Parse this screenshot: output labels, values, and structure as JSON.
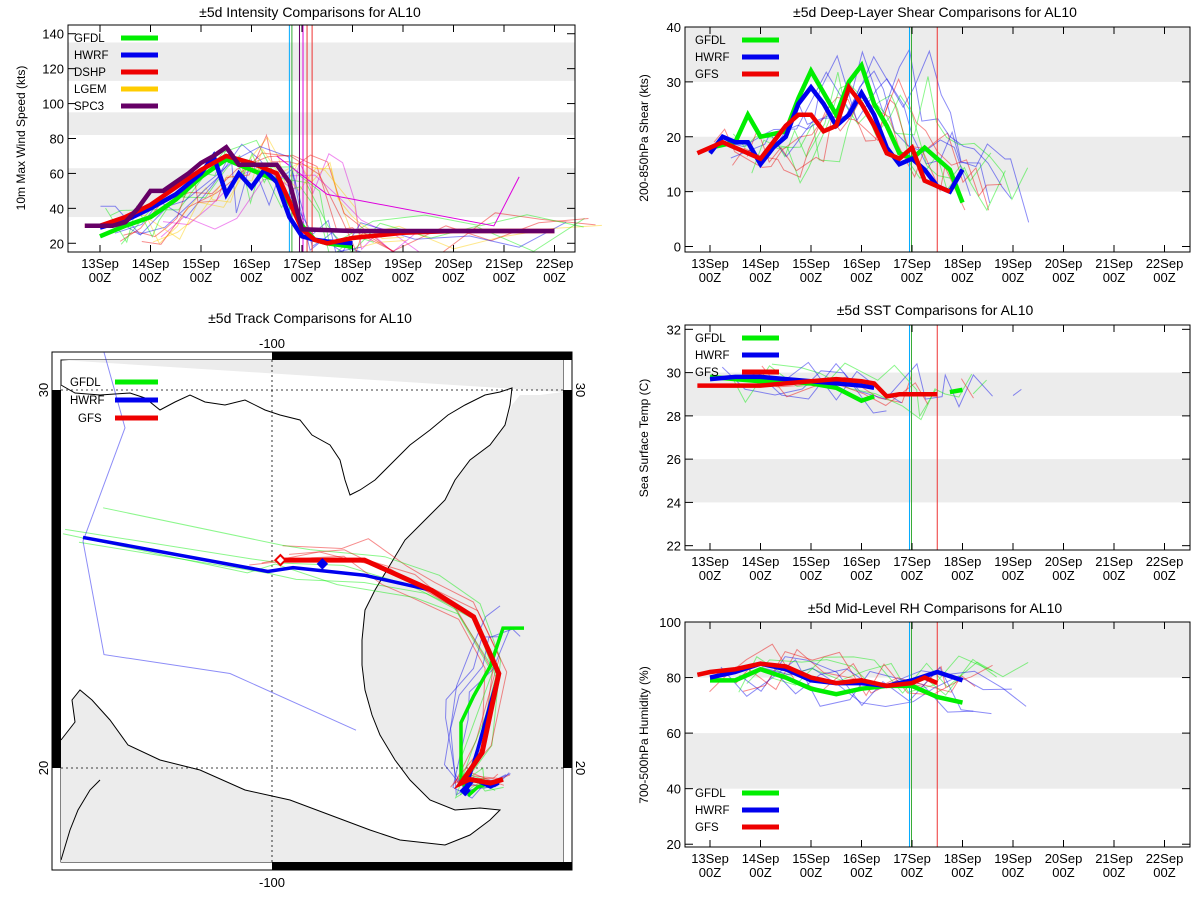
{
  "colors": {
    "GFDL": "#00ee00",
    "HWRF": "#0000ee",
    "DSHP": "#ee0000",
    "GFS": "#ee0000",
    "LGEM": "#ffcc00",
    "SPC3": "#660066",
    "band": "#ececec",
    "thin_magenta": "#dd00dd",
    "verify_cyan": "#00aaff",
    "verify_green": "#33aa33",
    "verify_red": "#ee3333"
  },
  "time_axis": {
    "labels": [
      [
        "13Sep",
        "00Z"
      ],
      [
        "14Sep",
        "00Z"
      ],
      [
        "15Sep",
        "00Z"
      ],
      [
        "16Sep",
        "00Z"
      ],
      [
        "17Sep",
        "00Z"
      ],
      [
        "18Sep",
        "00Z"
      ],
      [
        "19Sep",
        "00Z"
      ],
      [
        "20Sep",
        "00Z"
      ],
      [
        "21Sep",
        "00Z"
      ],
      [
        "22Sep",
        "00Z"
      ]
    ],
    "xmin_day": 0,
    "xmax_day": 9
  },
  "chart_data": [
    {
      "id": "intensity",
      "type": "line",
      "title": "±5d Intensity Comparisons for AL10",
      "ylabel": "10m Max Wind Speed (kts)",
      "ylim": [
        15,
        145
      ],
      "yticks": [
        20,
        40,
        60,
        80,
        100,
        120,
        140
      ],
      "bands": [
        [
          35,
          63
        ],
        [
          82,
          95
        ],
        [
          113,
          135
        ]
      ],
      "verify_lines": [
        3.75,
        3.8,
        3.95,
        4.02,
        4.1,
        4.2
      ],
      "legend": [
        "GFDL",
        "HWRF",
        "DSHP",
        "LGEM",
        "SPC3"
      ],
      "series": [
        {
          "name": "GFDL",
          "x": [
            0,
            0.5,
            1,
            1.5,
            2,
            2.5,
            3,
            3.5,
            4,
            4.25,
            4.5,
            5
          ],
          "y": [
            24,
            30,
            35,
            45,
            58,
            68,
            62,
            56,
            30,
            22,
            20,
            18
          ]
        },
        {
          "name": "HWRF",
          "x": [
            0,
            0.5,
            1,
            1.5,
            2,
            2.25,
            2.5,
            2.75,
            3,
            3.25,
            3.5,
            3.75,
            4,
            4.25,
            4.5,
            5
          ],
          "y": [
            29,
            33,
            40,
            48,
            60,
            70,
            48,
            60,
            52,
            62,
            55,
            35,
            24,
            22,
            21,
            20
          ]
        },
        {
          "name": "DSHP",
          "x": [
            -0.3,
            0,
            0.5,
            1,
            1.5,
            2,
            2.5,
            3,
            3.5,
            4,
            4.25,
            4.5,
            5,
            6,
            7,
            8,
            9
          ],
          "y": [
            30,
            30,
            35,
            42,
            52,
            62,
            70,
            66,
            60,
            28,
            22,
            20,
            23,
            26,
            27,
            27,
            27
          ]
        },
        {
          "name": "SPC3",
          "x": [
            -0.3,
            0,
            0.25,
            0.5,
            0.75,
            1,
            1.25,
            1.5,
            1.75,
            2,
            2.25,
            2.5,
            2.75,
            3,
            3.25,
            3.5,
            3.75,
            4,
            5,
            6,
            7,
            8,
            9
          ],
          "y": [
            30,
            30,
            30,
            32,
            40,
            50,
            50,
            55,
            60,
            66,
            70,
            75,
            65,
            65,
            65,
            65,
            55,
            28,
            27,
            27,
            27,
            27,
            27
          ]
        }
      ]
    },
    {
      "id": "shear",
      "type": "line",
      "title": "±5d Deep-Layer Shear Comparisons for AL10",
      "ylabel": "200-850hPa Shear (kts)",
      "ylim": [
        -1,
        40
      ],
      "yticks": [
        0,
        10,
        20,
        30,
        40
      ],
      "bands": [
        [
          10,
          20
        ],
        [
          30,
          40
        ]
      ],
      "verify_lines": [
        3.95,
        4.5
      ],
      "legend": [
        "GFDL",
        "HWRF",
        "GFS"
      ],
      "series": [
        {
          "name": "GFDL",
          "x": [
            0,
            0.5,
            0.75,
            1,
            1.5,
            1.75,
            2,
            2.5,
            2.75,
            3,
            3.25,
            3.5,
            3.75,
            4,
            4.25,
            4.5,
            4.75,
            5
          ],
          "y": [
            18,
            19,
            24,
            20,
            21,
            27,
            32,
            24,
            30,
            33,
            26,
            22,
            17,
            16,
            18,
            16,
            14,
            8
          ]
        },
        {
          "name": "HWRF",
          "x": [
            0,
            0.25,
            0.5,
            0.75,
            1,
            1.25,
            1.5,
            1.75,
            2,
            2.25,
            2.5,
            2.75,
            3,
            3.25,
            3.5,
            3.75,
            4,
            4.25,
            4.5,
            4.75,
            5
          ],
          "y": [
            17,
            20,
            19,
            19,
            15,
            18,
            20,
            26,
            29,
            26,
            22,
            24,
            28,
            24,
            18,
            15,
            16,
            14,
            11,
            10,
            14
          ]
        },
        {
          "name": "GFS",
          "x": [
            -0.25,
            0,
            0.25,
            0.5,
            0.75,
            1,
            1.25,
            1.5,
            1.75,
            2,
            2.25,
            2.5,
            2.75,
            3,
            3.25,
            3.5,
            3.75,
            4,
            4.25,
            4.5,
            4.75
          ],
          "y": [
            17,
            18,
            19,
            18,
            17,
            16,
            19,
            22,
            24,
            24,
            21,
            22,
            29,
            26,
            22,
            17,
            16,
            18,
            12,
            11,
            10
          ]
        }
      ]
    },
    {
      "id": "sst",
      "type": "line",
      "title": "±5d SST Comparisons for AL10",
      "ylabel": "Sea Surface Temp (C)",
      "ylim": [
        21.8,
        32.2
      ],
      "yticks": [
        22,
        24,
        26,
        28,
        30,
        32
      ],
      "bands": [
        [
          28,
          30
        ],
        [
          24,
          26
        ]
      ],
      "verify_lines": [
        3.95,
        4.5
      ],
      "legend": [
        "GFDL",
        "HWRF",
        "GFS"
      ],
      "series": [
        {
          "name": "GFDL",
          "x": [
            0,
            0.5,
            1,
            1.5,
            2,
            2.5,
            3,
            3.25
          ],
          "y": [
            29.8,
            29.7,
            29.6,
            29.6,
            29.5,
            29.3,
            28.7,
            28.9
          ]
        },
        {
          "name": "GFDL",
          "x": [
            4.75,
            5
          ],
          "y": [
            29.1,
            29.2
          ]
        },
        {
          "name": "HWRF",
          "x": [
            0,
            0.5,
            1,
            1.5,
            2,
            2.5,
            3,
            3.25
          ],
          "y": [
            29.7,
            29.8,
            29.8,
            29.7,
            29.6,
            29.5,
            29.4,
            29.3
          ]
        },
        {
          "name": "GFS",
          "x": [
            -0.25,
            0,
            0.5,
            1,
            1.5,
            2,
            2.5,
            3,
            3.25,
            3.5,
            3.75,
            4,
            4.25,
            4.5
          ],
          "y": [
            29.4,
            29.4,
            29.4,
            29.4,
            29.5,
            29.6,
            29.7,
            29.6,
            29.5,
            28.9,
            29.0,
            29.0,
            29.0,
            29.0
          ]
        }
      ]
    },
    {
      "id": "rh",
      "type": "line",
      "title": "±5d Mid-Level RH Comparisons for AL10",
      "ylabel": "700-500hPa Humidity (%)",
      "ylim": [
        19,
        100
      ],
      "yticks": [
        20,
        40,
        60,
        80,
        100
      ],
      "bands": [
        [
          40,
          60
        ],
        [
          80,
          100
        ]
      ],
      "verify_lines": [
        3.95,
        4.5
      ],
      "legend": [
        "GFDL",
        "HWRF",
        "GFS"
      ],
      "series": [
        {
          "name": "GFDL",
          "x": [
            0,
            0.5,
            1,
            1.5,
            2,
            2.5,
            3,
            3.5,
            4,
            4.5,
            5
          ],
          "y": [
            79,
            79,
            83,
            80,
            76,
            74,
            76,
            77,
            77,
            73,
            71
          ]
        },
        {
          "name": "HWRF",
          "x": [
            0,
            0.5,
            1,
            1.5,
            2,
            2.5,
            3,
            3.5,
            4,
            4.5,
            5
          ],
          "y": [
            80,
            82,
            85,
            83,
            79,
            78,
            78,
            77,
            79,
            82,
            79
          ]
        },
        {
          "name": "GFS",
          "x": [
            -0.25,
            0,
            0.5,
            1,
            1.5,
            2,
            2.5,
            3,
            3.5,
            4,
            4.25,
            4.5
          ],
          "y": [
            81,
            82,
            83,
            85,
            84,
            80,
            78,
            79,
            77,
            78,
            80,
            78
          ]
        }
      ]
    },
    {
      "id": "track",
      "type": "map",
      "title": "±5d Track Comparisons for AL10",
      "lon_labels": [
        "-100",
        "-100"
      ],
      "lat_labels": [
        "30",
        "20",
        "30",
        "20"
      ],
      "legend": [
        "GFDL",
        "HWRF",
        "GFS"
      ],
      "tracks": [
        {
          "name": "GFDL",
          "lon": [
            -94.5,
            -94.8,
            -95.1,
            -95.3,
            -95.5,
            -95.5,
            -95.2,
            -94.8,
            -94.5,
            -94.0
          ],
          "lat": [
            19.7,
            19.6,
            19.5,
            19.3,
            19.7,
            21.2,
            21.9,
            22.7,
            23.7,
            23.7
          ]
        },
        {
          "name": "HWRF",
          "lon": [
            -94.6,
            -94.8,
            -95.2,
            -95.4,
            -95.1,
            -94.6,
            -95.2,
            -96.2,
            -97.8,
            -99.5,
            -100.1,
            -104.5
          ],
          "lat": [
            19.6,
            19.5,
            19.7,
            19.4,
            20.5,
            22.5,
            24.0,
            24.7,
            25.1,
            25.3,
            25.2,
            26.1
          ]
        },
        {
          "name": "GFS",
          "lon": [
            -94.5,
            -94.8,
            -95.3,
            -95.5,
            -95.0,
            -94.6,
            -95.2,
            -96.2,
            -96.8,
            -97.8,
            -98.5,
            -99.8
          ],
          "lat": [
            19.7,
            19.6,
            19.7,
            19.6,
            20.4,
            22.5,
            24.0,
            24.7,
            25.0,
            25.5,
            25.5,
            25.5
          ]
        }
      ]
    }
  ]
}
